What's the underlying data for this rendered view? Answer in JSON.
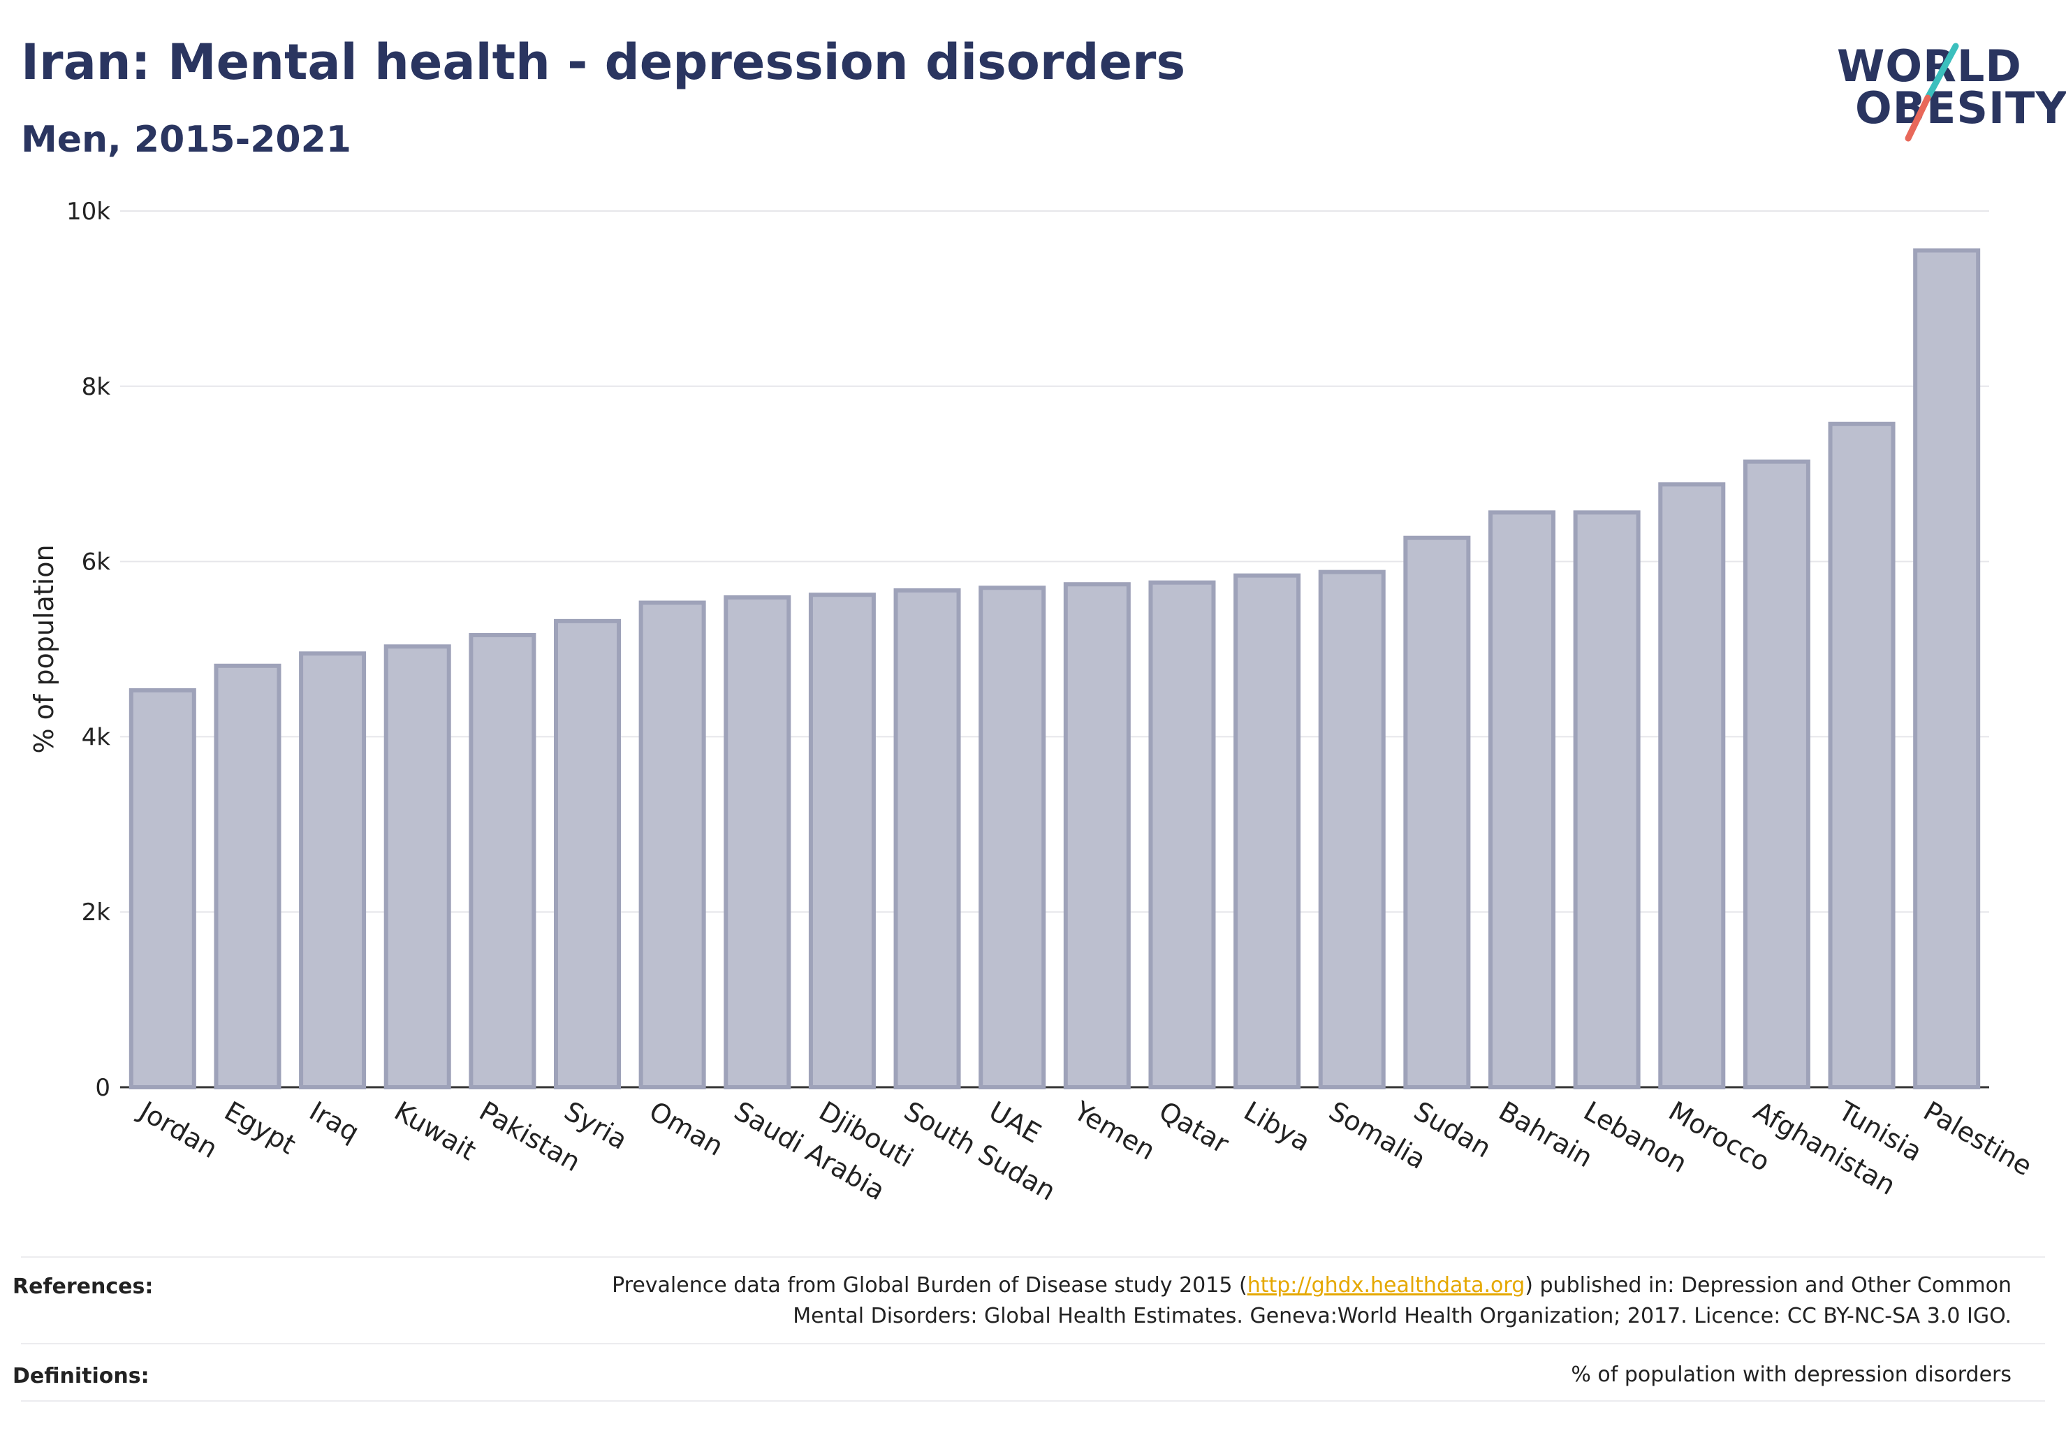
{
  "title": "Iran: Mental health - depression disorders",
  "subtitle": "Men, 2015-2021",
  "logo": {
    "line1": "WORLD",
    "line2": "OBESITY",
    "accent_teal": "#3bbfbd",
    "accent_red": "#e8685a"
  },
  "colors": {
    "bar_fill": "#bcbfcf",
    "bar_stroke": "#9ea2b9",
    "title": "#2a3560",
    "grid": "#e6e6ea",
    "link": "#e5a800"
  },
  "chart_data": {
    "type": "bar",
    "title": "Iran: Mental health - depression disorders",
    "subtitle": "Men, 2015-2021",
    "xlabel": "",
    "ylabel": "% of population",
    "ylim": [
      0,
      10000
    ],
    "yticks": [
      0,
      2000,
      4000,
      6000,
      8000,
      10000
    ],
    "ytick_labels": [
      "0",
      "2k",
      "4k",
      "6k",
      "8k",
      "10k"
    ],
    "grid": true,
    "categories": [
      "Jordan",
      "Egypt",
      "Iraq",
      "Kuwait",
      "Pakistan",
      "Syria",
      "Oman",
      "Saudi Arabia",
      "Djibouti",
      "South Sudan",
      "UAE",
      "Yemen",
      "Qatar",
      "Libya",
      "Somalia",
      "Sudan",
      "Bahrain",
      "Lebanon",
      "Morocco",
      "Afghanistan",
      "Tunisia",
      "Palestine"
    ],
    "values": [
      4530,
      4810,
      4950,
      5030,
      5160,
      5320,
      5530,
      5590,
      5620,
      5670,
      5700,
      5740,
      5760,
      5840,
      5880,
      6270,
      6560,
      6560,
      6880,
      7140,
      7570,
      9550
    ]
  },
  "footer": {
    "references_label": "References:",
    "references_line1_pre": "Prevalence data from Global Burden of Disease study 2015 (",
    "references_link": "http://ghdx.healthdata.org",
    "references_line1_post": ") published in: Depression and Other Common",
    "references_line2": "Mental Disorders: Global Health Estimates. Geneva:World Health Organization; 2017. Licence: CC BY-NC-SA 3.0 IGO.",
    "definitions_label": "Definitions:",
    "definitions_text": "% of population with depression disorders"
  }
}
